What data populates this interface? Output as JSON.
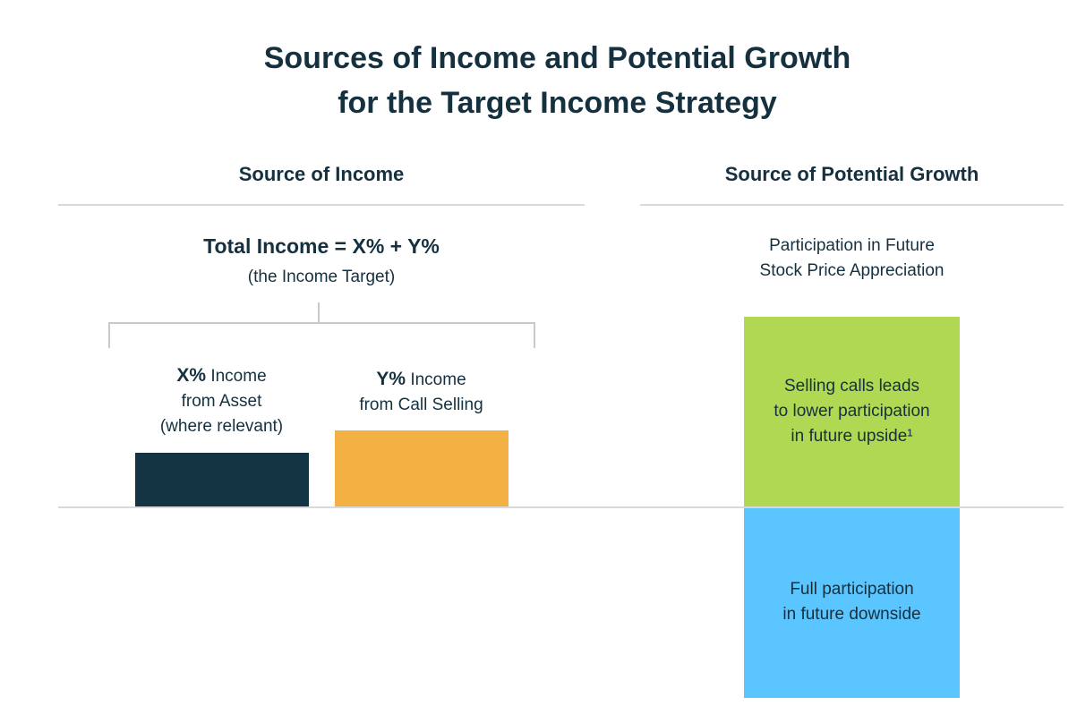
{
  "title": {
    "line1": "Sources of Income and Potential Growth",
    "line2": "for the Target Income Strategy"
  },
  "income": {
    "header": "Source of Income",
    "total": "Total Income = X% + Y%",
    "target": "(the Income Target)",
    "bars": [
      {
        "bold": "X%",
        "rest": "Income",
        "line2": "from Asset",
        "line3": "(where relevant)",
        "color": "#143343"
      },
      {
        "bold": "Y%",
        "rest": "Income",
        "line2": "from Call Selling",
        "color": "#f2b142"
      }
    ]
  },
  "growth": {
    "header": "Source of Potential Growth",
    "subtitle_line1": "Participation in Future",
    "subtitle_line2": "Stock Price Appreciation",
    "upside": {
      "line1": "Selling calls leads",
      "line2": "to lower participation",
      "line3": "in future upside¹",
      "color": "#b1d852"
    },
    "downside": {
      "line1": "Full participation",
      "line2": "in future downside",
      "color": "#5bc5ff"
    }
  }
}
